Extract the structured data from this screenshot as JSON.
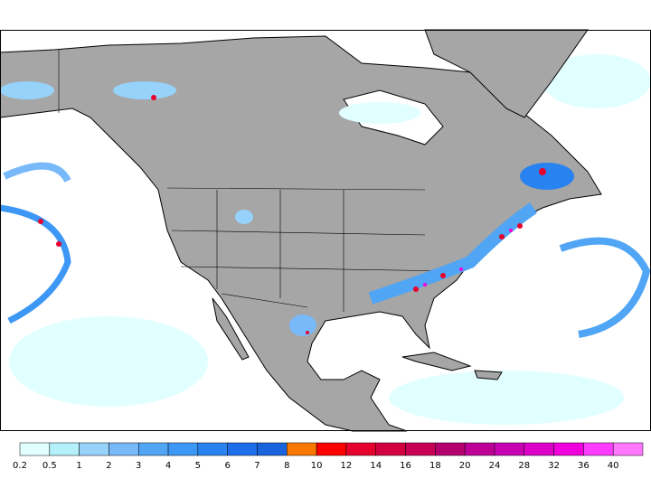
{
  "colorbar": {
    "levels": [
      0.2,
      0.5,
      1,
      2,
      3,
      4,
      5,
      6,
      7,
      8,
      10,
      12,
      14,
      16,
      18,
      20,
      24,
      28,
      32,
      36,
      40
    ],
    "colors": [
      "#e1ffff",
      "#b4f0fa",
      "#96d2fa",
      "#78b9fa",
      "#50a5f5",
      "#3c97f5",
      "#2883f0",
      "#1e6eeb",
      "#1964dc",
      "#fa7800",
      "#ff0000",
      "#e6002d",
      "#d20041",
      "#c80055",
      "#b4006e",
      "#be0096",
      "#c800b4",
      "#dc00c8",
      "#f000dc",
      "#ff3cff",
      "#ff78ff"
    ]
  }
}
